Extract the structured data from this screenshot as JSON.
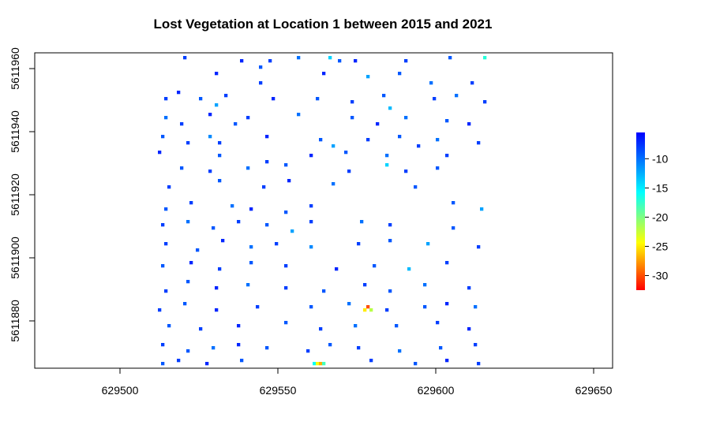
{
  "chart_data": {
    "type": "heatmap",
    "title": "Lost Vegetation at Location 1 between 2015 and 2021",
    "xlabel": "",
    "ylabel": "",
    "xlim": [
      629473,
      629656
    ],
    "ylim": [
      5611865,
      5611965
    ],
    "x_ticks": [
      {
        "value": 629500,
        "label": "629500"
      },
      {
        "value": 629550,
        "label": "629550"
      },
      {
        "value": 629600,
        "label": "629600"
      },
      {
        "value": 629650,
        "label": "629650"
      }
    ],
    "y_ticks": [
      {
        "value": 5611880,
        "label": "5611880"
      },
      {
        "value": 5611900,
        "label": "5611900"
      },
      {
        "value": 5611920,
        "label": "5611920"
      },
      {
        "value": 5611940,
        "label": "5611940"
      },
      {
        "value": 5611960,
        "label": "5611960"
      }
    ],
    "raster_extent": {
      "xmin": 629512,
      "xmax": 629616,
      "ymin": 5611865,
      "ymax": 5611965
    },
    "cells": [
      [
        629520,
        5611963,
        -8
      ],
      [
        629538,
        5611962,
        -7
      ],
      [
        629544,
        5611960,
        -9
      ],
      [
        629547,
        5611962,
        -8
      ],
      [
        629556,
        5611963,
        -10
      ],
      [
        629566,
        5611963,
        -14
      ],
      [
        629569,
        5611962,
        -9
      ],
      [
        629574,
        5611962,
        -7
      ],
      [
        629590,
        5611962,
        -8
      ],
      [
        629604,
        5611963,
        -9
      ],
      [
        629615,
        5611963,
        -17
      ],
      [
        629530,
        5611958,
        -7
      ],
      [
        629544,
        5611955,
        -8
      ],
      [
        629564,
        5611958,
        -7
      ],
      [
        629578,
        5611957,
        -12
      ],
      [
        629588,
        5611958,
        -9
      ],
      [
        629598,
        5611955,
        -10
      ],
      [
        629611,
        5611955,
        -8
      ],
      [
        629514,
        5611950,
        -8
      ],
      [
        629518,
        5611952,
        -7
      ],
      [
        629525,
        5611950,
        -9
      ],
      [
        629530,
        5611948,
        -12
      ],
      [
        629533,
        5611951,
        -8
      ],
      [
        629548,
        5611950,
        -7
      ],
      [
        629562,
        5611950,
        -9
      ],
      [
        629573,
        5611949,
        -8
      ],
      [
        629583,
        5611951,
        -9
      ],
      [
        629585,
        5611947,
        -13
      ],
      [
        629599,
        5611950,
        -8
      ],
      [
        629606,
        5611951,
        -10
      ],
      [
        629615,
        5611949,
        -8
      ],
      [
        629514,
        5611944,
        -10
      ],
      [
        629519,
        5611942,
        -8
      ],
      [
        629528,
        5611945,
        -7
      ],
      [
        629536,
        5611942,
        -9
      ],
      [
        629540,
        5611944,
        -8
      ],
      [
        629556,
        5611945,
        -10
      ],
      [
        629573,
        5611944,
        -9
      ],
      [
        629581,
        5611942,
        -7
      ],
      [
        629590,
        5611944,
        -10
      ],
      [
        629603,
        5611943,
        -9
      ],
      [
        629610,
        5611942,
        -7
      ],
      [
        629513,
        5611938,
        -9
      ],
      [
        629521,
        5611936,
        -8
      ],
      [
        629528,
        5611938,
        -11
      ],
      [
        629531,
        5611936,
        -8
      ],
      [
        629546,
        5611938,
        -7
      ],
      [
        629563,
        5611937,
        -9
      ],
      [
        629567,
        5611935,
        -12
      ],
      [
        629578,
        5611937,
        -8
      ],
      [
        629588,
        5611938,
        -9
      ],
      [
        629594,
        5611935,
        -8
      ],
      [
        629600,
        5611937,
        -10
      ],
      [
        629613,
        5611936,
        -8
      ],
      [
        629512,
        5611933,
        -7
      ],
      [
        629531,
        5611932,
        -9
      ],
      [
        629546,
        5611930,
        -8
      ],
      [
        629560,
        5611932,
        -7
      ],
      [
        629571,
        5611933,
        -9
      ],
      [
        629584,
        5611932,
        -10
      ],
      [
        629603,
        5611932,
        -8
      ],
      [
        629519,
        5611928,
        -9
      ],
      [
        629528,
        5611927,
        -8
      ],
      [
        629540,
        5611928,
        -10
      ],
      [
        629552,
        5611929,
        -9
      ],
      [
        629572,
        5611927,
        -8
      ],
      [
        629584,
        5611929,
        -14
      ],
      [
        629590,
        5611927,
        -8
      ],
      [
        629600,
        5611928,
        -9
      ],
      [
        629515,
        5611922,
        -8
      ],
      [
        629531,
        5611924,
        -9
      ],
      [
        629545,
        5611922,
        -8
      ],
      [
        629553,
        5611924,
        -7
      ],
      [
        629567,
        5611923,
        -10
      ],
      [
        629593,
        5611922,
        -9
      ],
      [
        629514,
        5611915,
        -9
      ],
      [
        629522,
        5611917,
        -8
      ],
      [
        629535,
        5611916,
        -10
      ],
      [
        629541,
        5611915,
        -7
      ],
      [
        629552,
        5611914,
        -9
      ],
      [
        629560,
        5611916,
        -8
      ],
      [
        629605,
        5611917,
        -9
      ],
      [
        629614,
        5611915,
        -12
      ],
      [
        629513,
        5611910,
        -8
      ],
      [
        629521,
        5611911,
        -10
      ],
      [
        629529,
        5611909,
        -9
      ],
      [
        629537,
        5611911,
        -8
      ],
      [
        629546,
        5611910,
        -9
      ],
      [
        629554,
        5611908,
        -12
      ],
      [
        629560,
        5611911,
        -8
      ],
      [
        629576,
        5611911,
        -10
      ],
      [
        629585,
        5611910,
        -8
      ],
      [
        629605,
        5611909,
        -9
      ],
      [
        629514,
        5611904,
        -8
      ],
      [
        629524,
        5611902,
        -9
      ],
      [
        629532,
        5611905,
        -7
      ],
      [
        629541,
        5611903,
        -10
      ],
      [
        629549,
        5611904,
        -8
      ],
      [
        629560,
        5611903,
        -11
      ],
      [
        629575,
        5611904,
        -8
      ],
      [
        629585,
        5611905,
        -9
      ],
      [
        629597,
        5611904,
        -12
      ],
      [
        629613,
        5611903,
        -8
      ],
      [
        629513,
        5611897,
        -9
      ],
      [
        629522,
        5611898,
        -7
      ],
      [
        629531,
        5611896,
        -8
      ],
      [
        629541,
        5611898,
        -9
      ],
      [
        629552,
        5611897,
        -8
      ],
      [
        629568,
        5611896,
        -7
      ],
      [
        629580,
        5611897,
        -9
      ],
      [
        629591,
        5611896,
        -13
      ],
      [
        629603,
        5611898,
        -8
      ],
      [
        629514,
        5611889,
        -8
      ],
      [
        629521,
        5611892,
        -9
      ],
      [
        629530,
        5611890,
        -7
      ],
      [
        629540,
        5611891,
        -10
      ],
      [
        629552,
        5611890,
        -8
      ],
      [
        629564,
        5611889,
        -9
      ],
      [
        629577,
        5611891,
        -8
      ],
      [
        629585,
        5611889,
        -9
      ],
      [
        629596,
        5611891,
        -10
      ],
      [
        629610,
        5611890,
        -8
      ],
      [
        629512,
        5611883,
        -8
      ],
      [
        629520,
        5611885,
        -9
      ],
      [
        629530,
        5611883,
        -7
      ],
      [
        629543,
        5611884,
        -8
      ],
      [
        629560,
        5611884,
        -9
      ],
      [
        629572,
        5611885,
        -10
      ],
      [
        629577,
        5611883,
        -25
      ],
      [
        629578,
        5611884,
        -30
      ],
      [
        629579,
        5611883,
        -22
      ],
      [
        629584,
        5611883,
        -8
      ],
      [
        629596,
        5611884,
        -9
      ],
      [
        629603,
        5611885,
        -7
      ],
      [
        629612,
        5611884,
        -10
      ],
      [
        629515,
        5611878,
        -9
      ],
      [
        629525,
        5611877,
        -8
      ],
      [
        629537,
        5611878,
        -7
      ],
      [
        629552,
        5611879,
        -9
      ],
      [
        629563,
        5611877,
        -8
      ],
      [
        629574,
        5611878,
        -10
      ],
      [
        629587,
        5611878,
        -9
      ],
      [
        629600,
        5611879,
        -8
      ],
      [
        629610,
        5611877,
        -7
      ],
      [
        629513,
        5611872,
        -8
      ],
      [
        629521,
        5611870,
        -9
      ],
      [
        629529,
        5611871,
        -10
      ],
      [
        629537,
        5611872,
        -7
      ],
      [
        629546,
        5611871,
        -9
      ],
      [
        629559,
        5611870,
        -8
      ],
      [
        629566,
        5611872,
        -9
      ],
      [
        629575,
        5611871,
        -8
      ],
      [
        629588,
        5611870,
        -10
      ],
      [
        629601,
        5611871,
        -9
      ],
      [
        629612,
        5611872,
        -8
      ],
      [
        629513,
        5611866,
        -9
      ],
      [
        629518,
        5611867,
        -8
      ],
      [
        629527,
        5611866,
        -7
      ],
      [
        629538,
        5611867,
        -9
      ],
      [
        629561,
        5611866,
        -16
      ],
      [
        629562,
        5611866,
        -24
      ],
      [
        629563,
        5611866,
        -27
      ],
      [
        629564,
        5611866,
        -18
      ],
      [
        629579,
        5611867,
        -8
      ],
      [
        629593,
        5611866,
        -9
      ],
      [
        629603,
        5611867,
        -7
      ],
      [
        629613,
        5611866,
        -8
      ]
    ],
    "legend": {
      "placement": "right",
      "min": -32.5,
      "max": -5.5,
      "ticks": [
        {
          "value": -10,
          "label": "-10"
        },
        {
          "value": -15,
          "label": "-15"
        },
        {
          "value": -20,
          "label": "-20"
        },
        {
          "value": -25,
          "label": "-25"
        },
        {
          "value": -30,
          "label": "-30"
        }
      ],
      "colors": [
        "#ff0000",
        "#ffff00",
        "#00ffff",
        "#0000ff"
      ]
    },
    "grid": false
  }
}
